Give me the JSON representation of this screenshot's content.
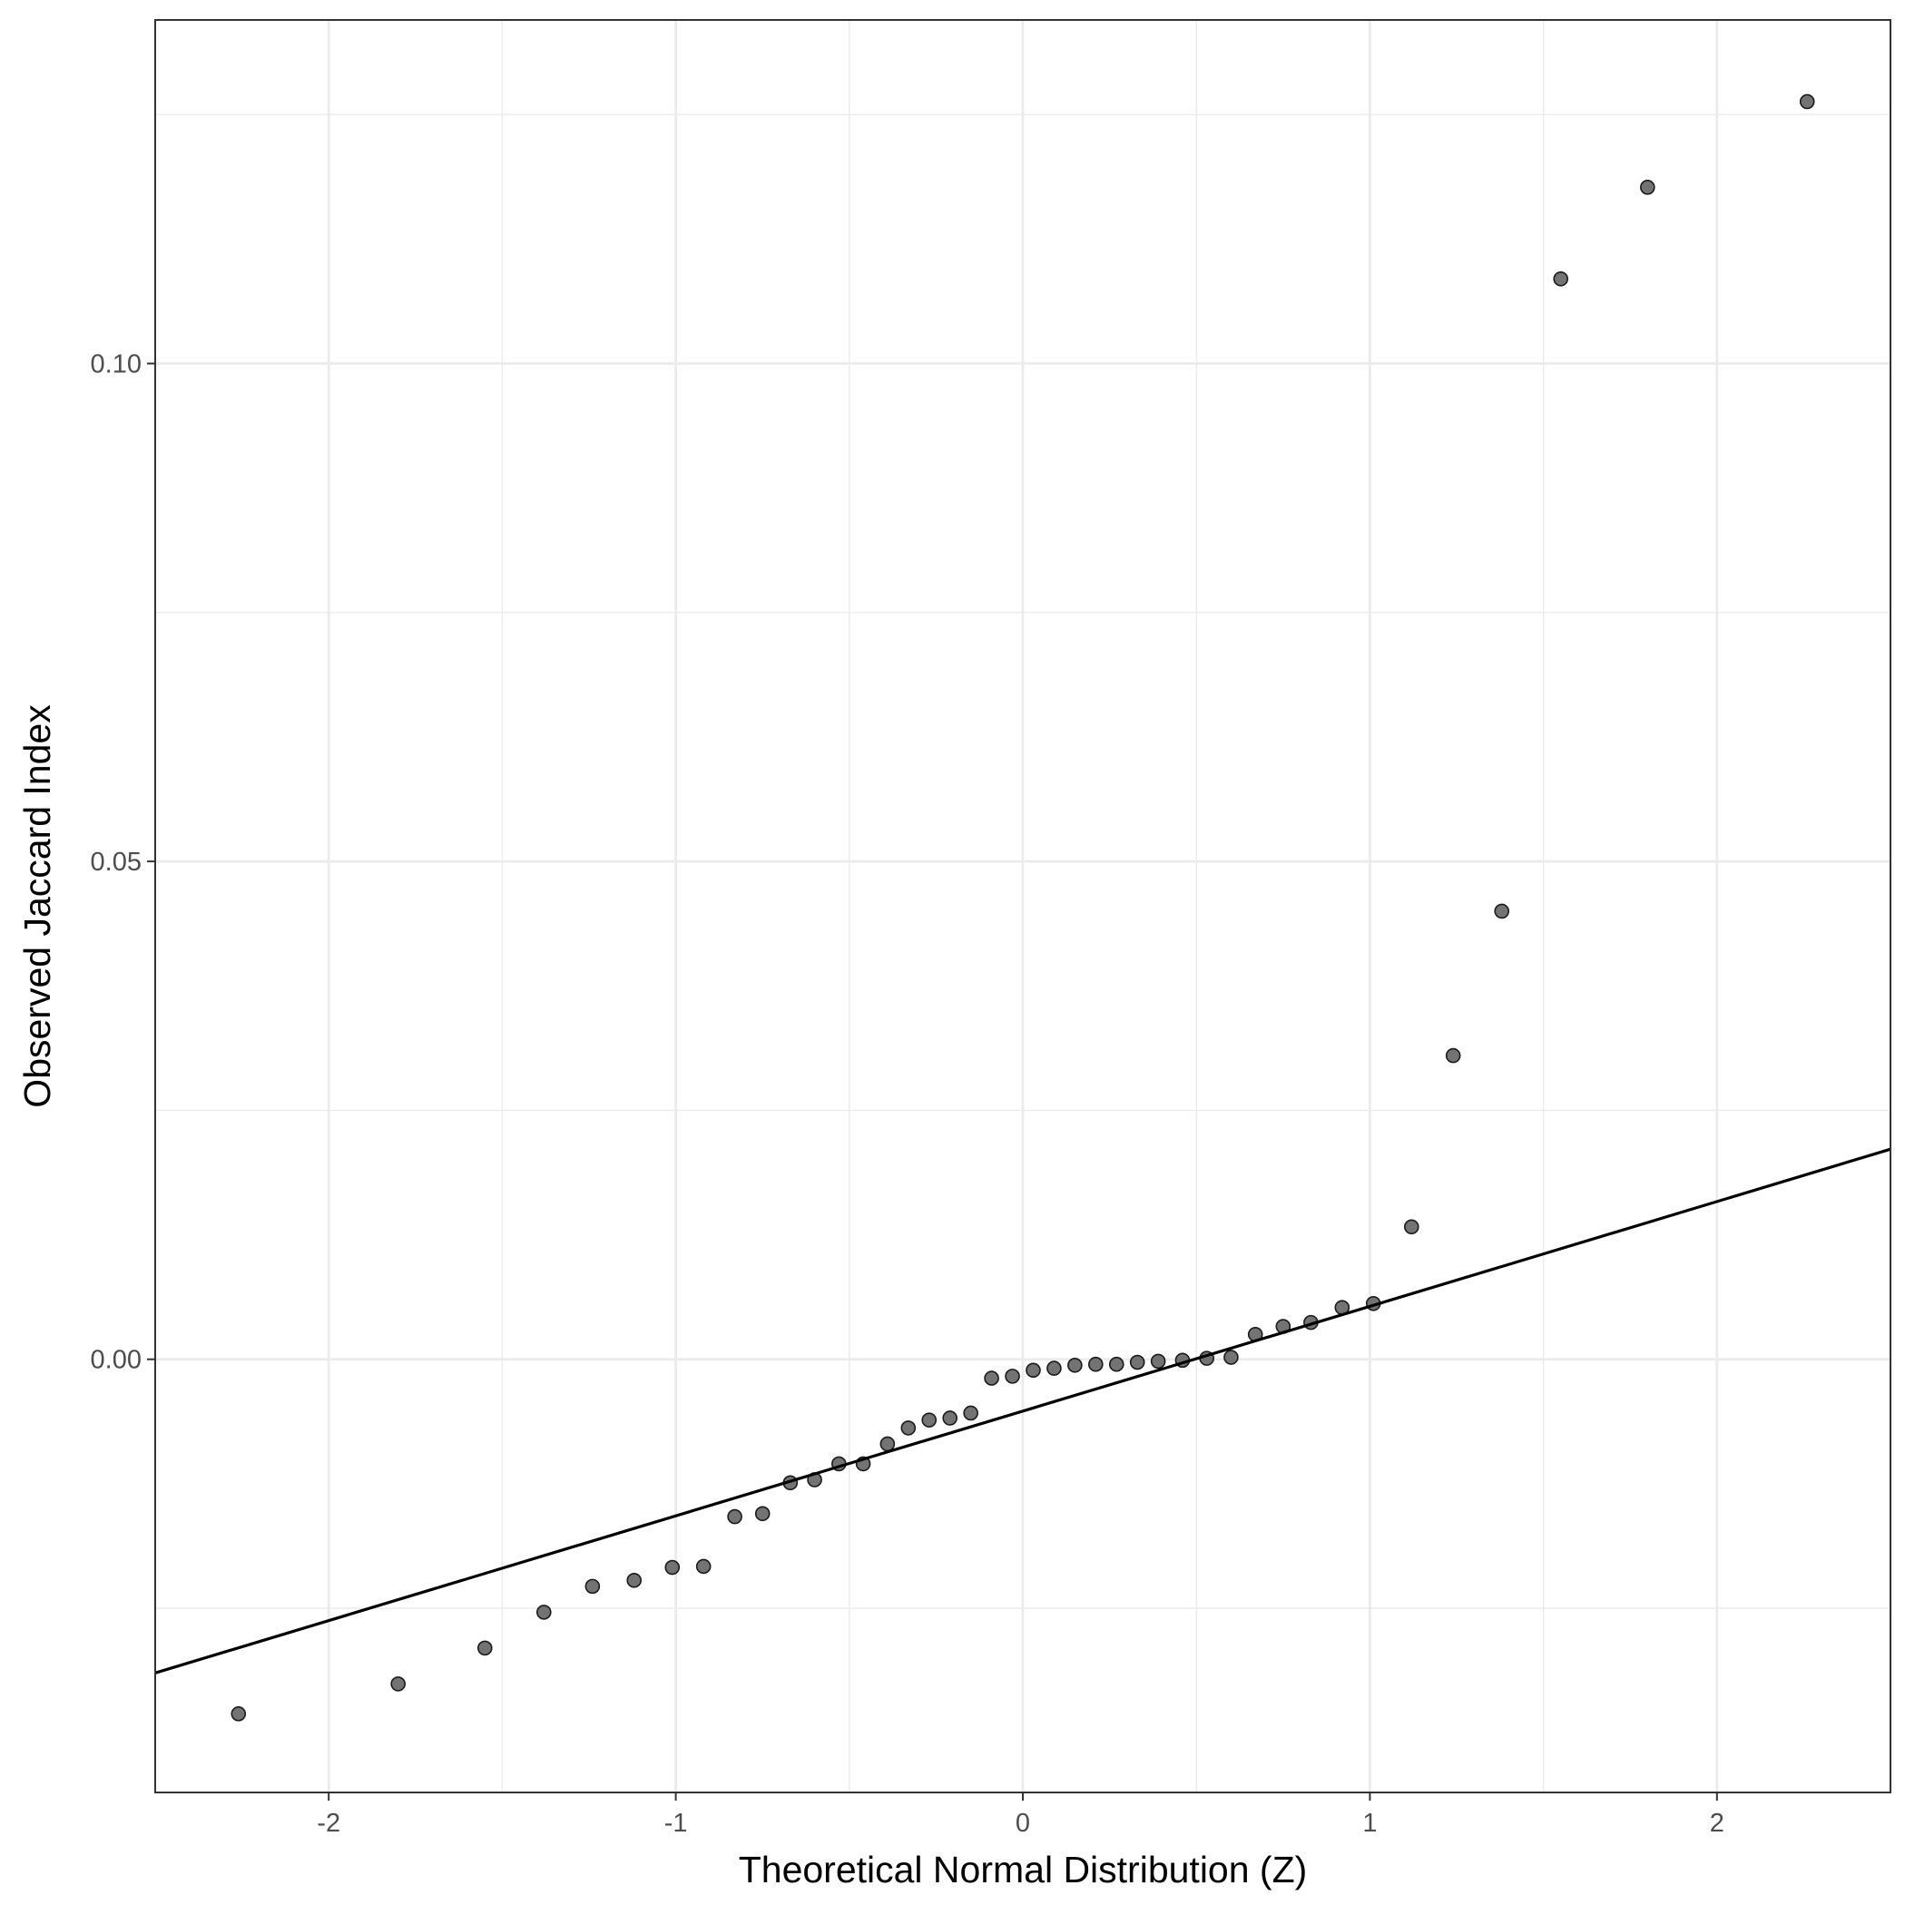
{
  "chart_data": {
    "type": "scatter",
    "title": "",
    "xlabel": "Theoretical Normal Distribution (Z)",
    "ylabel": "Observed Jaccard Index",
    "xlim": [
      -2.5,
      2.5
    ],
    "ylim": [
      -0.0435,
      0.1345
    ],
    "x_ticks": [
      -2,
      -1,
      0,
      1,
      2
    ],
    "x_tick_labels": [
      "-2",
      "-1",
      "0",
      "1",
      "2"
    ],
    "y_ticks": [
      0.0,
      0.05,
      0.1
    ],
    "y_tick_labels": [
      "0.00",
      "0.05",
      "0.10"
    ],
    "grid": true,
    "legend": "none",
    "point_color": "#5a5a5a",
    "line_color": "#000000",
    "points": {
      "x": [
        -2.26,
        -1.8,
        -1.55,
        -1.38,
        -1.24,
        -1.12,
        -1.01,
        -0.92,
        -0.83,
        -0.75,
        -0.67,
        -0.6,
        -0.53,
        -0.46,
        -0.39,
        -0.33,
        -0.27,
        -0.21,
        -0.15,
        -0.09,
        -0.03,
        0.03,
        0.09,
        0.15,
        0.21,
        0.27,
        0.33,
        0.39,
        0.46,
        0.53,
        0.6,
        0.67,
        0.75,
        0.83,
        0.92,
        1.01,
        1.12,
        1.24,
        1.38,
        1.55,
        1.8,
        2.26
      ],
      "y": [
        -0.0356,
        -0.0326,
        -0.029,
        -0.0254,
        -0.0228,
        -0.0222,
        -0.0209,
        -0.0208,
        -0.0158,
        -0.0155,
        -0.0124,
        -0.0121,
        -0.0105,
        -0.0105,
        -0.0085,
        -0.0069,
        -0.0061,
        -0.0059,
        -0.0054,
        -0.0019,
        -0.0017,
        -0.0011,
        -0.0009,
        -0.0006,
        -0.0005,
        -0.0005,
        -0.0003,
        -0.0002,
        -0.0001,
        0.0001,
        0.0002,
        0.0025,
        0.0033,
        0.0037,
        0.0052,
        0.0056,
        0.0133,
        0.0305,
        0.045,
        0.1085,
        0.1177,
        0.1263
      ]
    },
    "reference_line": {
      "type": "qq-line",
      "x": [
        -2.5,
        2.5
      ],
      "y": [
        -0.0315,
        0.0211
      ]
    }
  }
}
